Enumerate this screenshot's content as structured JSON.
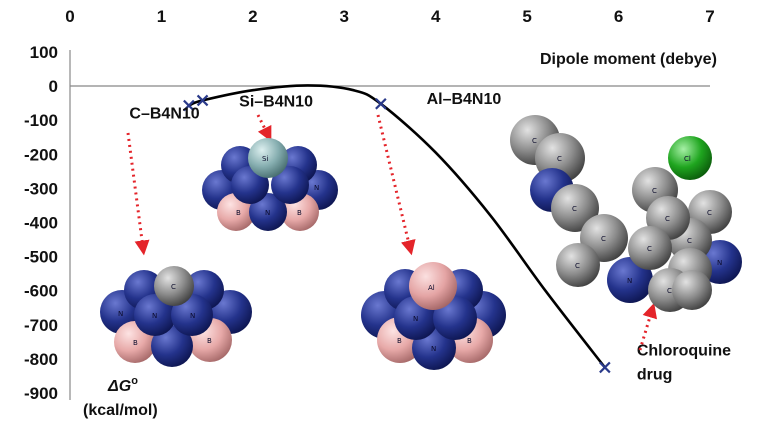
{
  "chart_data": {
    "type": "line",
    "xlabel": "Dipole moment (debye)",
    "ylabel_symbol": "ΔG",
    "ylabel_superscript": "o",
    "ylabel_unit": "(kcal/mol)",
    "xlim": [
      0,
      7
    ],
    "ylim": [
      -900,
      100
    ],
    "x_ticks": [
      "0",
      "1",
      "2",
      "3",
      "4",
      "5",
      "6",
      "7"
    ],
    "y_ticks": [
      "100",
      "0",
      "-100",
      "-200",
      "-300",
      "-400",
      "-500",
      "-600",
      "-700",
      "-800",
      "-900"
    ],
    "x_axis_position": "top",
    "grid": false,
    "series": [
      {
        "marker": "x",
        "color": "#000000",
        "marker_color": "#2a3a8a",
        "points": [
          {
            "x": 1.3,
            "y": -57
          },
          {
            "x": 1.45,
            "y": -42
          },
          {
            "x": 3.4,
            "y": -52
          },
          {
            "x": 5.85,
            "y": -825
          }
        ],
        "curve": [
          {
            "x": 1.3,
            "y": -57
          },
          {
            "x": 1.45,
            "y": -42
          },
          {
            "x": 2.0,
            "y": -12
          },
          {
            "x": 2.6,
            "y": 2
          },
          {
            "x": 3.1,
            "y": -12
          },
          {
            "x": 3.4,
            "y": -52
          },
          {
            "x": 4.0,
            "y": -195
          },
          {
            "x": 4.6,
            "y": -380
          },
          {
            "x": 5.2,
            "y": -600
          },
          {
            "x": 5.85,
            "y": -825
          }
        ]
      }
    ],
    "annotations": [
      {
        "text": "C–B4N10",
        "x": 0.65,
        "y": -95
      },
      {
        "text": "Si–B4N10",
        "x": 1.85,
        "y": -60
      },
      {
        "text": "Al–B4N10",
        "x": 3.9,
        "y": -52
      },
      {
        "text": "Chloroquine",
        "x": 6.2,
        "y": -790
      },
      {
        "text": "drug",
        "x": 6.2,
        "y": -860
      }
    ]
  },
  "atom_labels": {
    "nitrogen": "N",
    "boron": "B",
    "carbon": "C",
    "silicon": "Si",
    "aluminium": "Al",
    "chlorine": "Cl"
  },
  "colors": {
    "nitrogen": "#24338c",
    "boron": "#e7a9a8",
    "carbon": "#8c8c8c",
    "silicon": "#86aeb0",
    "aluminium": "#e4a4a4",
    "chlorine": "#1fa51f",
    "arrow": "#e4242a",
    "marker": "#2a3a8a"
  }
}
